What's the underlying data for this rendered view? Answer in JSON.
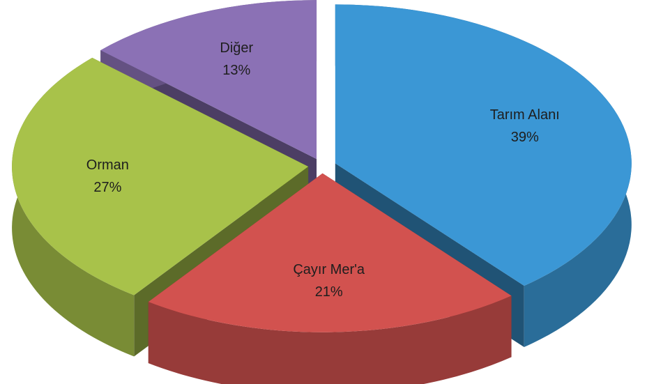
{
  "chart_data": {
    "type": "pie3d",
    "categories": [
      "Tarım Alanı",
      "Çayır Mer'a",
      "Orman",
      "Diğer"
    ],
    "values": [
      39,
      21,
      27,
      13
    ],
    "value_labels": [
      "39%",
      "21%",
      "27%",
      "13%"
    ],
    "colors": [
      "#3b97d5",
      "#d2524f",
      "#a8c24a",
      "#8b71b5"
    ]
  }
}
